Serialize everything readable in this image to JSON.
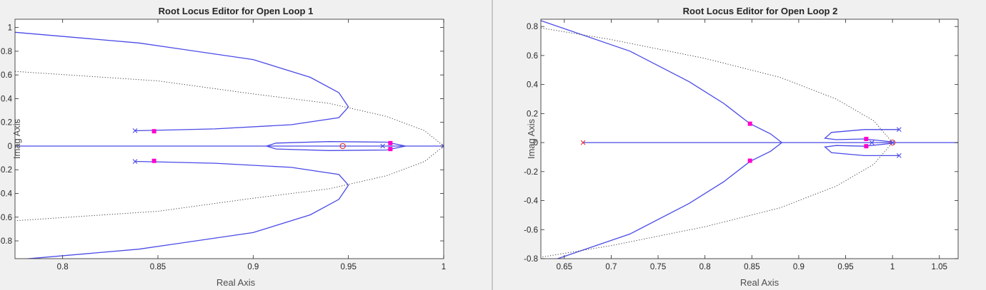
{
  "colors": {
    "background": "#f0f0f0",
    "axes_face": "#ffffff",
    "locus": "#4a4ae8",
    "boundary": "#404040",
    "open_loop_pole": "#4a4ae8",
    "closed_loop_pole": "#ff00cc",
    "zero": "#e03030",
    "divider": "#a0a0a0"
  },
  "chart_data": [
    {
      "type": "line",
      "subtype": "root-locus",
      "title": "Root Locus Editor for Open Loop 1",
      "xlabel": "Real Axis",
      "ylabel": "Imag Axis",
      "xlim": [
        0.775,
        1.0
      ],
      "ylim": [
        -0.95,
        1.07
      ],
      "xticks": [
        "0.8",
        "0.85",
        "0.9",
        "0.95",
        "1"
      ],
      "xtick_values": [
        0.8,
        0.85,
        0.9,
        0.95,
        1.0
      ],
      "yticks": [
        "1",
        "0.8",
        "0.6",
        "0.4",
        "0.2",
        "0",
        "-0.2",
        "-0.4",
        "-0.6",
        "-0.8"
      ],
      "ytick_values": [
        1.0,
        0.8,
        0.6,
        0.4,
        0.2,
        0.0,
        -0.2,
        -0.4,
        -0.6,
        -0.8
      ],
      "grid": false,
      "series": [
        {
          "role": "locus",
          "points": [
            [
              0.775,
              0.96
            ],
            [
              0.84,
              0.87
            ],
            [
              0.9,
              0.73
            ],
            [
              0.93,
              0.58
            ],
            [
              0.945,
              0.45
            ],
            [
              0.95,
              0.33
            ]
          ]
        },
        {
          "role": "locus",
          "points": [
            [
              0.95,
              0.33
            ],
            [
              0.945,
              0.24
            ],
            [
              0.92,
              0.18
            ],
            [
              0.88,
              0.145
            ],
            [
              0.84,
              0.13
            ],
            [
              0.838,
              0.13
            ]
          ]
        },
        {
          "role": "locus",
          "points": [
            [
              0.775,
              -0.96
            ],
            [
              0.84,
              -0.87
            ],
            [
              0.9,
              -0.73
            ],
            [
              0.93,
              -0.58
            ],
            [
              0.945,
              -0.45
            ],
            [
              0.95,
              -0.33
            ]
          ]
        },
        {
          "role": "locus",
          "points": [
            [
              0.95,
              -0.33
            ],
            [
              0.945,
              -0.24
            ],
            [
              0.92,
              -0.18
            ],
            [
              0.88,
              -0.145
            ],
            [
              0.84,
              -0.13
            ],
            [
              0.838,
              -0.13
            ]
          ]
        },
        {
          "role": "locus",
          "points": [
            [
              0.775,
              0.0
            ],
            [
              1.0,
              0.0
            ]
          ]
        },
        {
          "role": "locus",
          "points": [
            [
              0.907,
              0.0
            ],
            [
              0.912,
              0.025
            ],
            [
              0.94,
              0.038
            ],
            [
              0.97,
              0.033
            ],
            [
              0.98,
              0.0
            ],
            [
              0.97,
              -0.033
            ],
            [
              0.94,
              -0.038
            ],
            [
              0.912,
              -0.025
            ],
            [
              0.907,
              0.0
            ]
          ]
        },
        {
          "role": "boundary",
          "points": [
            [
              0.775,
              0.63
            ],
            [
              0.85,
              0.55
            ],
            [
              0.9,
              0.44
            ],
            [
              0.94,
              0.36
            ],
            [
              0.97,
              0.25
            ],
            [
              0.99,
              0.13
            ],
            [
              1.0,
              0.0
            ],
            [
              0.99,
              -0.13
            ],
            [
              0.97,
              -0.25
            ],
            [
              0.94,
              -0.36
            ],
            [
              0.9,
              -0.44
            ],
            [
              0.85,
              -0.55
            ],
            [
              0.775,
              -0.63
            ]
          ]
        }
      ],
      "open_loop_poles": [
        [
          0.838,
          0.13
        ],
        [
          0.838,
          -0.13
        ],
        [
          0.968,
          0.0
        ],
        [
          1.0,
          0.0
        ]
      ],
      "zeros": [
        [
          0.947,
          0.0
        ]
      ],
      "closed_loop_poles": [
        [
          0.848,
          0.125
        ],
        [
          0.848,
          -0.125
        ],
        [
          0.972,
          0.025
        ],
        [
          0.972,
          -0.025
        ]
      ]
    },
    {
      "type": "line",
      "subtype": "root-locus",
      "title": "Root Locus Editor for Open Loop 2",
      "xlabel": "Real Axis",
      "ylabel": "Imag Axis",
      "xlim": [
        0.625,
        1.07
      ],
      "ylim": [
        -0.8,
        0.85
      ],
      "xticks": [
        "0.65",
        "0.7",
        "0.75",
        "0.8",
        "0.85",
        "0.9",
        "0.95",
        "1",
        "1.05"
      ],
      "xtick_values": [
        0.65,
        0.7,
        0.75,
        0.8,
        0.85,
        0.9,
        0.95,
        1.0,
        1.05
      ],
      "yticks": [
        "0.8",
        "0.6",
        "0.4",
        "0.2",
        "0",
        "-0.2",
        "-0.4",
        "-0.6",
        "-0.8"
      ],
      "ytick_values": [
        0.8,
        0.6,
        0.4,
        0.2,
        0.0,
        -0.2,
        -0.4,
        -0.6,
        -0.8
      ],
      "grid": false,
      "series": [
        {
          "role": "locus",
          "points": [
            [
              0.625,
              0.84
            ],
            [
              0.72,
              0.63
            ],
            [
              0.783,
              0.42
            ],
            [
              0.82,
              0.27
            ],
            [
              0.848,
              0.13
            ],
            [
              0.87,
              0.06
            ],
            [
              0.882,
              0.0
            ]
          ]
        },
        {
          "role": "locus",
          "points": [
            [
              0.625,
              -0.84
            ],
            [
              0.72,
              -0.63
            ],
            [
              0.783,
              -0.42
            ],
            [
              0.82,
              -0.27
            ],
            [
              0.848,
              -0.13
            ],
            [
              0.87,
              -0.06
            ],
            [
              0.882,
              0.0
            ]
          ]
        },
        {
          "role": "locus",
          "points": [
            [
              0.67,
              0.0
            ],
            [
              0.882,
              0.0
            ]
          ]
        },
        {
          "role": "locus",
          "points": [
            [
              0.882,
              0.0
            ],
            [
              1.07,
              0.0
            ]
          ]
        },
        {
          "role": "locus",
          "points": [
            [
              1.007,
              0.09
            ],
            [
              0.97,
              0.09
            ],
            [
              0.935,
              0.07
            ],
            [
              0.928,
              0.03
            ],
            [
              0.94,
              0.02
            ],
            [
              0.97,
              0.025
            ],
            [
              1.0,
              0.005
            ]
          ]
        },
        {
          "role": "locus",
          "points": [
            [
              1.007,
              -0.09
            ],
            [
              0.97,
              -0.09
            ],
            [
              0.935,
              -0.07
            ],
            [
              0.928,
              -0.03
            ],
            [
              0.94,
              -0.02
            ],
            [
              0.97,
              -0.025
            ],
            [
              1.0,
              -0.005
            ]
          ]
        },
        {
          "role": "boundary",
          "points": [
            [
              0.625,
              0.79
            ],
            [
              0.7,
              0.71
            ],
            [
              0.8,
              0.58
            ],
            [
              0.88,
              0.45
            ],
            [
              0.94,
              0.3
            ],
            [
              0.98,
              0.15
            ],
            [
              1.0,
              0.0
            ],
            [
              0.98,
              -0.15
            ],
            [
              0.94,
              -0.3
            ],
            [
              0.88,
              -0.45
            ],
            [
              0.8,
              -0.58
            ],
            [
              0.7,
              -0.71
            ],
            [
              0.625,
              -0.79
            ]
          ]
        }
      ],
      "open_loop_poles": [
        [
          0.67,
          0.0
        ],
        [
          1.007,
          0.09
        ],
        [
          1.007,
          -0.09
        ],
        [
          0.978,
          0.0
        ],
        [
          1.0,
          0.0
        ]
      ],
      "zeros": [
        [
          1.0,
          0.0
        ]
      ],
      "closed_loop_poles": [
        [
          0.848,
          0.13
        ],
        [
          0.848,
          -0.125
        ],
        [
          0.972,
          0.025
        ],
        [
          0.972,
          -0.025
        ]
      ]
    }
  ]
}
